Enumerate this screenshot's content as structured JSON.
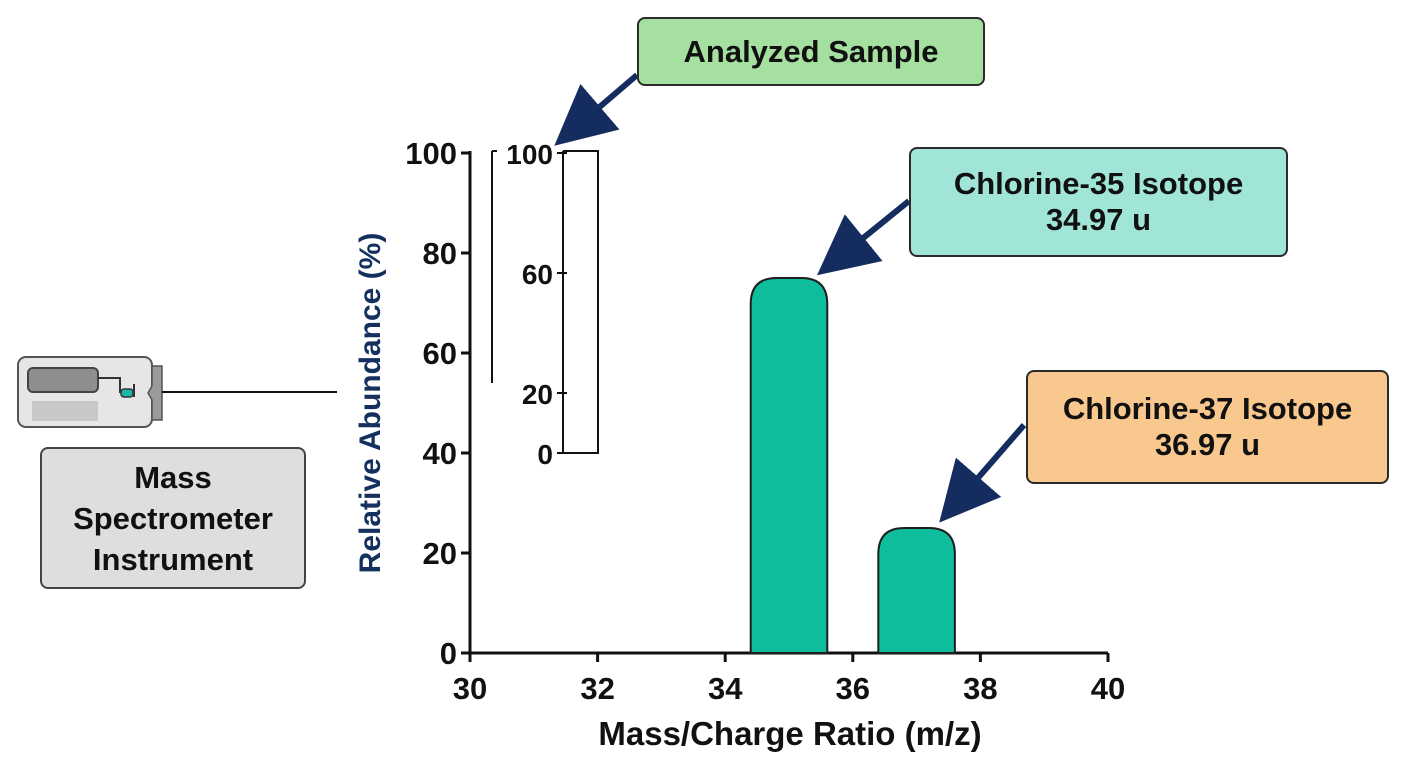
{
  "chart_data": {
    "type": "bar",
    "title": "",
    "xlabel": "Mass/Charge Ratio (m/z)",
    "ylabel": "Relative Abundance (%)",
    "xlim": [
      30,
      40
    ],
    "ylim": [
      0,
      100
    ],
    "x_ticks": [
      30,
      32,
      34,
      36,
      38,
      40
    ],
    "y_ticks": [
      0,
      20,
      40,
      60,
      80,
      100
    ],
    "bar_width": 1.2,
    "bars": [
      {
        "x": 35,
        "value": 75
      },
      {
        "x": 37,
        "value": 25
      }
    ],
    "bar_color": "#0ebd9b",
    "inset_axis": {
      "ticks": [
        0,
        20,
        60,
        100
      ],
      "positions": [
        0,
        20,
        60,
        100
      ]
    },
    "annotations": [
      {
        "lines": [
          "Analyzed Sample"
        ],
        "color": "#a6e0a0",
        "points_to": "inset-axis-top"
      },
      {
        "lines": [
          "Chlorine-35 Isotope",
          "34.97 u"
        ],
        "color": "#a1e4d8",
        "points_to": "bar-1"
      },
      {
        "lines": [
          "Chlorine-37 Isotope",
          "36.97 u"
        ],
        "color": "#f9c88f",
        "points_to": "bar-2"
      }
    ],
    "grid": false,
    "legend": "none"
  },
  "instrument": {
    "label_lines": [
      "Mass",
      "Spectrometer",
      "Instrument"
    ],
    "icon": "mass-spectrometer-icon"
  },
  "colors": {
    "ylabel": "#14305e",
    "arrow": "#142d5e",
    "bar_outline": "#1e1e1e"
  }
}
